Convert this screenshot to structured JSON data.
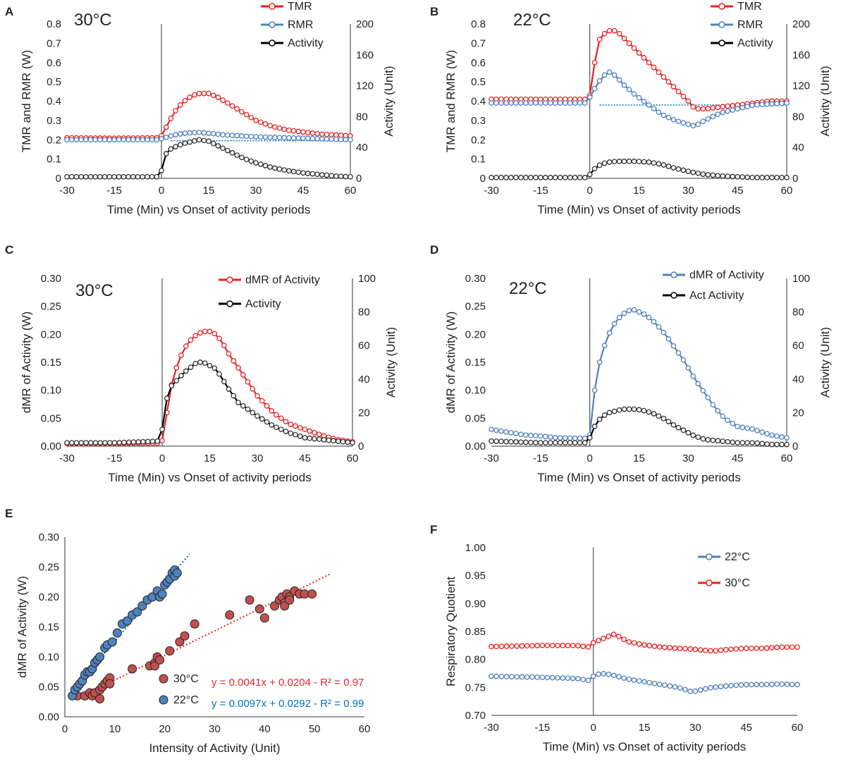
{
  "colors": {
    "red": "#e82323",
    "red_dark": "#c0504d",
    "blue": "#4f81bd",
    "blue_line": "#0070c0",
    "black": "#000000",
    "gray": "#7f7f7f",
    "red_pt": "#c0504d",
    "blue_pt": "#4f81bd"
  },
  "chart_data": [
    {
      "panel": "A",
      "type": "line",
      "title": "30°C",
      "xlabel": "Time (Min) vs Onset of activity periods",
      "ylabel": "TMR and RMR (W)",
      "y2label": "Activity (Unit)",
      "xlim": [
        -30,
        60
      ],
      "xticks": [
        "-30",
        "-15",
        "0",
        "15",
        "30",
        "45",
        "60"
      ],
      "ylim": [
        0,
        0.8
      ],
      "yticks": [
        "0",
        "0.1",
        "0.2",
        "0.3",
        "0.4",
        "0.5",
        "0.6",
        "0.7",
        "0.8"
      ],
      "y2lim": [
        0,
        200
      ],
      "y2ticks": [
        "0",
        "40",
        "80",
        "120",
        "160",
        "200"
      ],
      "baseline": 0.195,
      "series": [
        {
          "name": "TMR",
          "axis": "y",
          "color": "red",
          "x": [
            -30,
            -15,
            -1,
            0,
            2,
            4,
            6,
            8,
            10,
            12,
            15,
            18,
            21,
            24,
            27,
            30,
            35,
            40,
            45,
            50,
            55,
            60
          ],
          "values": [
            0.21,
            0.208,
            0.21,
            0.22,
            0.28,
            0.34,
            0.38,
            0.41,
            0.43,
            0.44,
            0.44,
            0.42,
            0.39,
            0.36,
            0.33,
            0.3,
            0.27,
            0.25,
            0.24,
            0.23,
            0.225,
            0.22
          ]
        },
        {
          "name": "RMR",
          "axis": "y",
          "color": "blue",
          "x": [
            -30,
            -15,
            -1,
            0,
            4,
            8,
            12,
            16,
            20,
            25,
            30,
            40,
            50,
            60
          ],
          "values": [
            0.2,
            0.2,
            0.2,
            0.205,
            0.225,
            0.235,
            0.238,
            0.232,
            0.225,
            0.22,
            0.215,
            0.21,
            0.205,
            0.2
          ]
        },
        {
          "name": "Activity",
          "axis": "y2",
          "color": "black",
          "x": [
            -30,
            -15,
            -1,
            0,
            1,
            3,
            5,
            7,
            10,
            12,
            15,
            17,
            20,
            23,
            26,
            30,
            35,
            40,
            45,
            50,
            55,
            60
          ],
          "values": [
            2,
            2,
            2,
            10,
            30,
            38,
            42,
            45,
            48,
            50,
            48,
            44,
            38,
            32,
            26,
            20,
            14,
            10,
            7,
            5,
            3,
            2
          ]
        }
      ]
    },
    {
      "panel": "B",
      "type": "line",
      "title": "22°C",
      "xlabel": "Time (Min) vs Onset of activity periods",
      "ylabel": "TMR and RMR (W)",
      "y2label": "Activity (Unit)",
      "xlim": [
        -30,
        60
      ],
      "xticks": [
        "-30",
        "-15",
        "0",
        "15",
        "30",
        "45",
        "60"
      ],
      "ylim": [
        0,
        0.8
      ],
      "yticks": [
        "0",
        "0.1",
        "0.2",
        "0.3",
        "0.4",
        "0.5",
        "0.6",
        "0.7",
        "0.8"
      ],
      "y2lim": [
        0,
        200
      ],
      "y2ticks": [
        "0",
        "40",
        "80",
        "120",
        "160",
        "200"
      ],
      "baseline": 0.38,
      "series": [
        {
          "name": "TMR",
          "axis": "y",
          "color": "red",
          "x": [
            -30,
            -15,
            -1,
            0,
            1,
            2,
            3,
            5,
            7,
            9,
            12,
            15,
            18,
            21,
            24,
            27,
            30,
            32,
            35,
            40,
            45,
            50,
            55,
            60
          ],
          "values": [
            0.41,
            0.41,
            0.41,
            0.43,
            0.55,
            0.65,
            0.72,
            0.76,
            0.77,
            0.75,
            0.7,
            0.65,
            0.6,
            0.55,
            0.5,
            0.45,
            0.4,
            0.36,
            0.36,
            0.37,
            0.38,
            0.39,
            0.4,
            0.4
          ]
        },
        {
          "name": "RMR",
          "axis": "y",
          "color": "blue",
          "x": [
            -30,
            -15,
            -1,
            0,
            2,
            4,
            6,
            8,
            10,
            14,
            18,
            22,
            26,
            30,
            32,
            35,
            40,
            45,
            50,
            55,
            60
          ],
          "values": [
            0.39,
            0.39,
            0.39,
            0.42,
            0.48,
            0.53,
            0.55,
            0.53,
            0.49,
            0.43,
            0.38,
            0.33,
            0.3,
            0.28,
            0.27,
            0.3,
            0.34,
            0.36,
            0.38,
            0.385,
            0.39
          ]
        },
        {
          "name": "Activity",
          "axis": "y2",
          "color": "black",
          "x": [
            -30,
            -15,
            -1,
            0,
            2,
            4,
            6,
            8,
            10,
            14,
            18,
            22,
            26,
            30,
            35,
            40,
            45,
            50,
            55,
            60
          ],
          "values": [
            1,
            1,
            1,
            5,
            15,
            19,
            21,
            22,
            22,
            22,
            21,
            18,
            13,
            9,
            5,
            3,
            2,
            1,
            1,
            1
          ]
        }
      ]
    },
    {
      "panel": "C",
      "type": "line",
      "title": "30°C",
      "xlabel": "Time (Min) vs Onset of activity periods",
      "ylabel": "dMR of Activity (W)",
      "y2label": "Activity (Unit)",
      "xlim": [
        -30,
        60
      ],
      "xticks": [
        "-30",
        "-15",
        "0",
        "15",
        "30",
        "45",
        "60"
      ],
      "ylim": [
        0,
        0.3
      ],
      "yticks": [
        "0.00",
        "0.05",
        "0.10",
        "0.15",
        "0.20",
        "0.25",
        "0.30"
      ],
      "y2lim": [
        0,
        100
      ],
      "y2ticks": [
        "0",
        "20",
        "40",
        "60",
        "80",
        "100"
      ],
      "series": [
        {
          "name": "dMR of Activity",
          "axis": "y",
          "color": "red",
          "x": [
            -30,
            -15,
            -1,
            0,
            1,
            2,
            3,
            5,
            7,
            9,
            11,
            13,
            15,
            17,
            19,
            21,
            24,
            27,
            30,
            35,
            40,
            45,
            50,
            55,
            60
          ],
          "values": [
            0.005,
            0.005,
            0.005,
            0.01,
            0.04,
            0.08,
            0.11,
            0.15,
            0.175,
            0.19,
            0.2,
            0.205,
            0.205,
            0.2,
            0.185,
            0.165,
            0.14,
            0.115,
            0.09,
            0.06,
            0.04,
            0.03,
            0.02,
            0.012,
            0.008
          ]
        },
        {
          "name": "Activity",
          "axis": "y2",
          "color": "black",
          "x": [
            -30,
            -15,
            -1,
            0,
            1,
            2,
            3,
            5,
            7,
            9,
            11,
            13,
            15,
            17,
            19,
            21,
            24,
            27,
            30,
            35,
            40,
            45,
            50,
            55,
            60
          ],
          "values": [
            2,
            2,
            3,
            10,
            25,
            32,
            36,
            40,
            44,
            47,
            50,
            50,
            48,
            46,
            40,
            34,
            26,
            22,
            18,
            12,
            8,
            5,
            4,
            3,
            2
          ]
        }
      ]
    },
    {
      "panel": "D",
      "type": "line",
      "title": "22°C",
      "xlabel": "Time (Min) vs Onset of activity periods",
      "ylabel": "dMR of Activity (W)",
      "y2label": "Activity (Unit)",
      "xlim": [
        -30,
        60
      ],
      "xticks": [
        "-30",
        "-15",
        "0",
        "15",
        "30",
        "45",
        "60"
      ],
      "ylim": [
        0,
        0.3
      ],
      "yticks": [
        "0.00",
        "0.05",
        "0.10",
        "0.15",
        "0.20",
        "0.25",
        "0.30"
      ],
      "y2lim": [
        0,
        100
      ],
      "y2ticks": [
        "0",
        "20",
        "40",
        "60",
        "80",
        "100"
      ],
      "series": [
        {
          "name": "dMR of Activity",
          "axis": "y",
          "color": "blue",
          "x": [
            -30,
            -25,
            -20,
            -15,
            -10,
            -5,
            -1,
            0,
            1,
            2,
            3,
            5,
            7,
            9,
            11,
            13,
            15,
            17,
            20,
            23,
            26,
            29,
            32,
            35,
            38,
            41,
            45,
            50,
            55,
            60
          ],
          "values": [
            0.03,
            0.025,
            0.02,
            0.018,
            0.015,
            0.014,
            0.014,
            0.02,
            0.08,
            0.12,
            0.15,
            0.19,
            0.215,
            0.23,
            0.24,
            0.245,
            0.24,
            0.235,
            0.22,
            0.2,
            0.175,
            0.15,
            0.12,
            0.095,
            0.07,
            0.05,
            0.035,
            0.03,
            0.02,
            0.015
          ]
        },
        {
          "name": "Act Activity",
          "axis": "y2",
          "color": "black",
          "x": [
            -30,
            -15,
            -1,
            0,
            2,
            4,
            6,
            8,
            10,
            12,
            14,
            17,
            20,
            23,
            26,
            29,
            32,
            35,
            40,
            45,
            50,
            55,
            60
          ],
          "values": [
            3,
            2,
            2,
            5,
            14,
            18,
            20,
            21,
            22,
            22,
            22,
            21,
            19,
            16,
            12,
            9,
            6,
            4,
            3,
            2,
            2,
            1,
            1
          ]
        }
      ]
    },
    {
      "panel": "E",
      "type": "scatter",
      "xlabel": "Intensity of Activity (Unit)",
      "ylabel": "dMR of Activity (W)",
      "xlim": [
        0,
        60
      ],
      "xticks": [
        "0",
        "10",
        "20",
        "30",
        "40",
        "50",
        "60"
      ],
      "ylim": [
        0,
        0.3
      ],
      "yticks": [
        "0.00",
        "0.05",
        "0.10",
        "0.15",
        "0.20",
        "0.25",
        "0.30"
      ],
      "series": [
        {
          "name": "30°C",
          "color": "red_pt",
          "fit": {
            "slope": 0.0041,
            "intercept": 0.0204,
            "x_range": [
              4,
              53
            ]
          },
          "equation": "y = 0.0041x + 0.0204 - R² = 0.97",
          "x": [
            2.5,
            4,
            5,
            5.5,
            6,
            7,
            7,
            7.5,
            8,
            8.5,
            9,
            9,
            13.5,
            17,
            18,
            18,
            18.5,
            19,
            21,
            23,
            24,
            26,
            33,
            37,
            39,
            40,
            42,
            43,
            43.5,
            44,
            44,
            44.5,
            45,
            45,
            46,
            47,
            48,
            49.5
          ],
          "values": [
            0.035,
            0.035,
            0.04,
            0.035,
            0.04,
            0.045,
            0.03,
            0.05,
            0.055,
            0.06,
            0.065,
            0.055,
            0.08,
            0.085,
            0.09,
            0.085,
            0.1,
            0.095,
            0.11,
            0.125,
            0.135,
            0.155,
            0.17,
            0.195,
            0.18,
            0.165,
            0.185,
            0.195,
            0.2,
            0.19,
            0.185,
            0.205,
            0.2,
            0.195,
            0.21,
            0.205,
            0.205,
            0.205
          ]
        },
        {
          "name": "22°C",
          "color": "blue_pt",
          "fit": {
            "slope": 0.0097,
            "intercept": 0.0292,
            "x_range": [
              1,
              25
            ]
          },
          "equation": "y = 0.0097x + 0.0292 - R² = 0.99",
          "x": [
            1.5,
            2,
            2.5,
            3,
            3.5,
            4,
            4.5,
            5,
            5.5,
            6,
            6.5,
            7,
            8,
            8.5,
            9.5,
            10.5,
            11.5,
            12.5,
            13.5,
            14.5,
            15.5,
            16.5,
            17.5,
            18.5,
            19,
            19.5,
            20,
            20.5,
            21,
            21.5,
            22,
            22,
            22.5
          ],
          "values": [
            0.035,
            0.045,
            0.05,
            0.055,
            0.06,
            0.07,
            0.075,
            0.075,
            0.08,
            0.09,
            0.095,
            0.1,
            0.115,
            0.12,
            0.125,
            0.14,
            0.155,
            0.16,
            0.17,
            0.175,
            0.185,
            0.195,
            0.2,
            0.21,
            0.2,
            0.205,
            0.22,
            0.225,
            0.23,
            0.24,
            0.235,
            0.245,
            0.24
          ]
        }
      ]
    },
    {
      "panel": "F",
      "type": "line",
      "xlabel": "Time (Min) vs Onset of activity periods",
      "ylabel": "Respiratory Quotient",
      "xlim": [
        -30,
        60
      ],
      "xticks": [
        "-30",
        "-15",
        "0",
        "15",
        "30",
        "45",
        "60"
      ],
      "ylim": [
        0.7,
        1.0
      ],
      "yticks": [
        "0.70",
        "0.75",
        "0.80",
        "0.85",
        "0.90",
        "0.95",
        "1.00"
      ],
      "series": [
        {
          "name": "22°C",
          "color": "blue",
          "x": [
            -30,
            -15,
            -5,
            -1,
            0,
            2,
            4,
            7,
            10,
            15,
            20,
            25,
            29,
            32,
            35,
            40,
            45,
            50,
            55,
            60
          ],
          "values": [
            0.77,
            0.768,
            0.766,
            0.762,
            0.77,
            0.775,
            0.774,
            0.77,
            0.765,
            0.76,
            0.755,
            0.75,
            0.742,
            0.746,
            0.75,
            0.753,
            0.755,
            0.755,
            0.756,
            0.755
          ]
        },
        {
          "name": "30°C",
          "color": "red",
          "x": [
            -30,
            -15,
            -5,
            -1,
            0,
            2,
            4,
            6,
            8,
            10,
            15,
            20,
            25,
            30,
            35,
            40,
            45,
            50,
            55,
            60
          ],
          "values": [
            0.823,
            0.825,
            0.825,
            0.822,
            0.83,
            0.835,
            0.84,
            0.845,
            0.84,
            0.832,
            0.826,
            0.822,
            0.82,
            0.818,
            0.815,
            0.818,
            0.82,
            0.82,
            0.822,
            0.822
          ]
        }
      ]
    }
  ]
}
